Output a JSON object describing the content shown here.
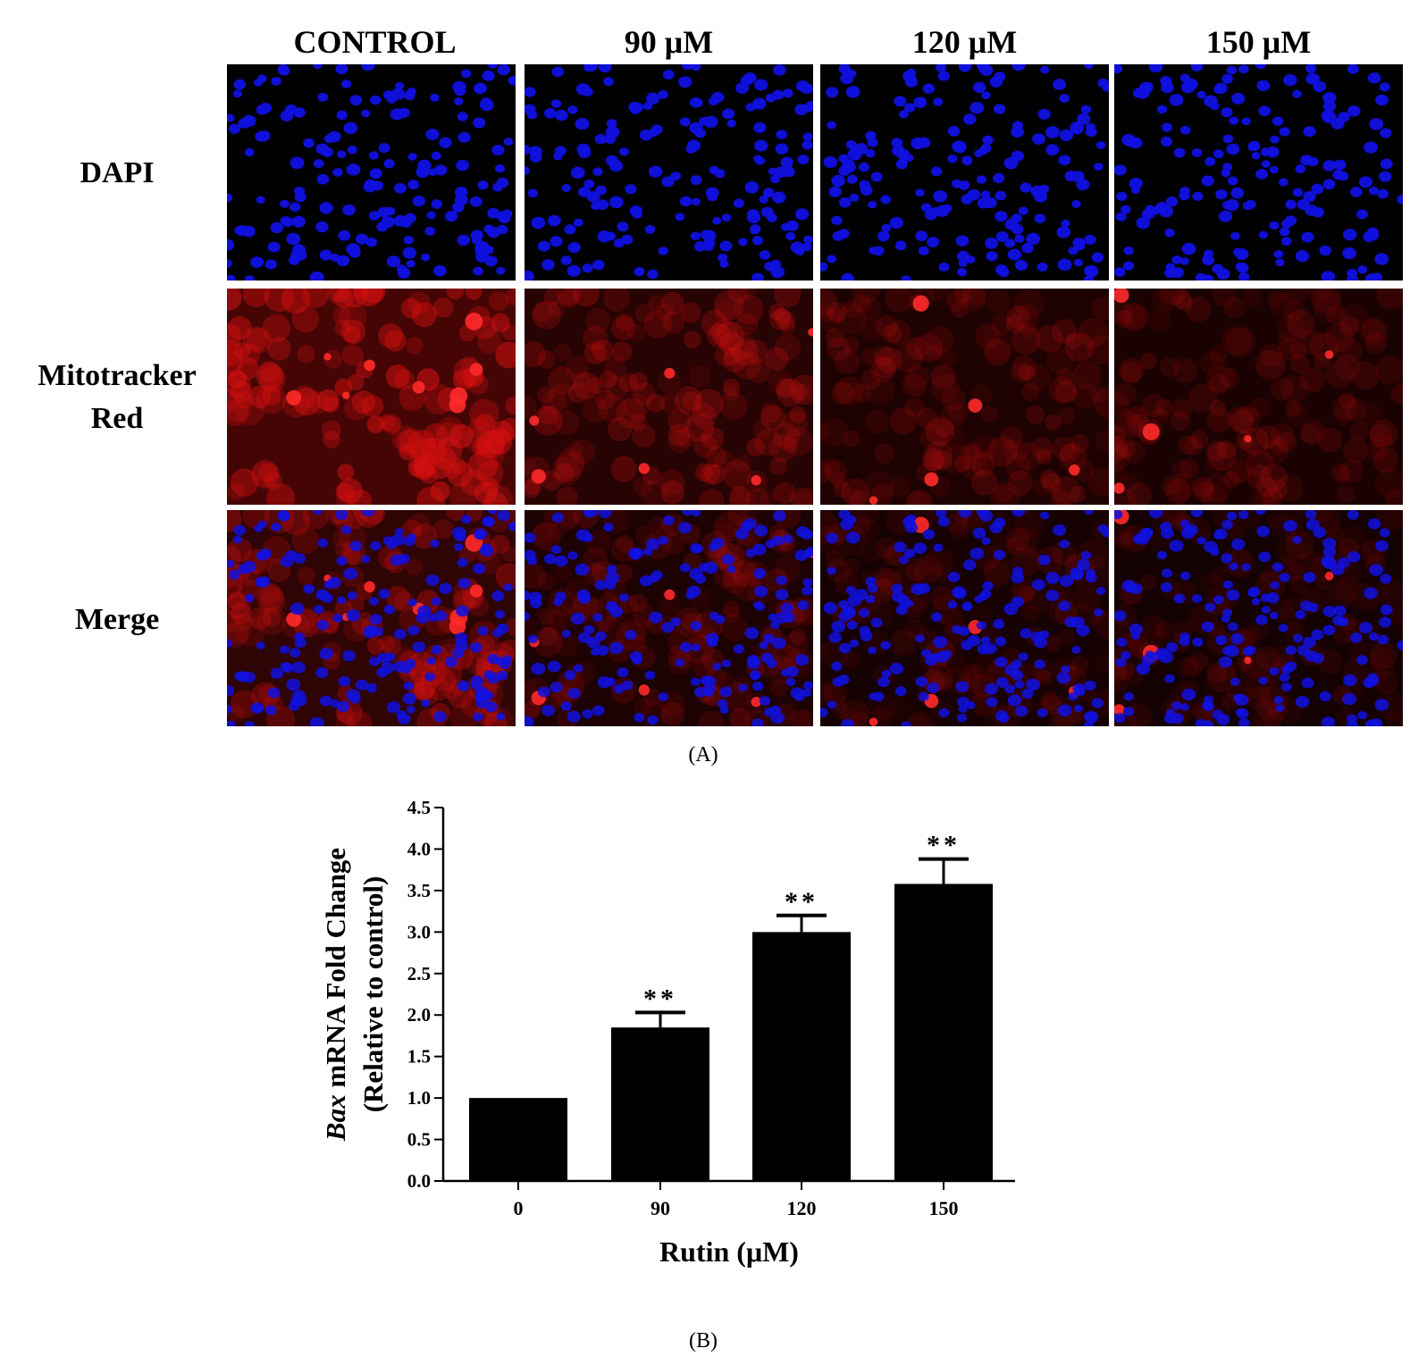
{
  "panel_a": {
    "caption": "(A)",
    "column_headers": [
      "CONTROL",
      "90 μM",
      "120 μM",
      "150 μM"
    ],
    "row_labels": [
      "DAPI",
      "Mitotracker",
      "Red",
      "Merge"
    ],
    "mitotracker_intensity": [
      1.0,
      0.5,
      0.35,
      0.3
    ],
    "colors": {
      "dapi": "#1010e0",
      "mitotracker": "#d81010",
      "background": "#000000"
    }
  },
  "panel_b": {
    "caption": "(B)"
  },
  "chart_data": {
    "type": "bar",
    "categories": [
      "0",
      "90",
      "120",
      "150"
    ],
    "values": [
      1.0,
      1.85,
      3.0,
      3.58
    ],
    "error": [
      0.0,
      0.18,
      0.2,
      0.3
    ],
    "significance": [
      "",
      "**",
      "**",
      "**"
    ],
    "ylabel_italic": "Bax",
    "ylabel_rest": " mRNA Fold Change",
    "ylabel_line2": "(Relative to control)",
    "xlabel": "Rutin (μM)",
    "ylim": [
      0,
      4.5
    ],
    "yticks": [
      "0.0",
      "0.5",
      "1.0",
      "1.5",
      "2.0",
      "2.5",
      "3.0",
      "3.5",
      "4.0",
      "4.5"
    ],
    "bar_color": "#000000",
    "grid": false
  }
}
